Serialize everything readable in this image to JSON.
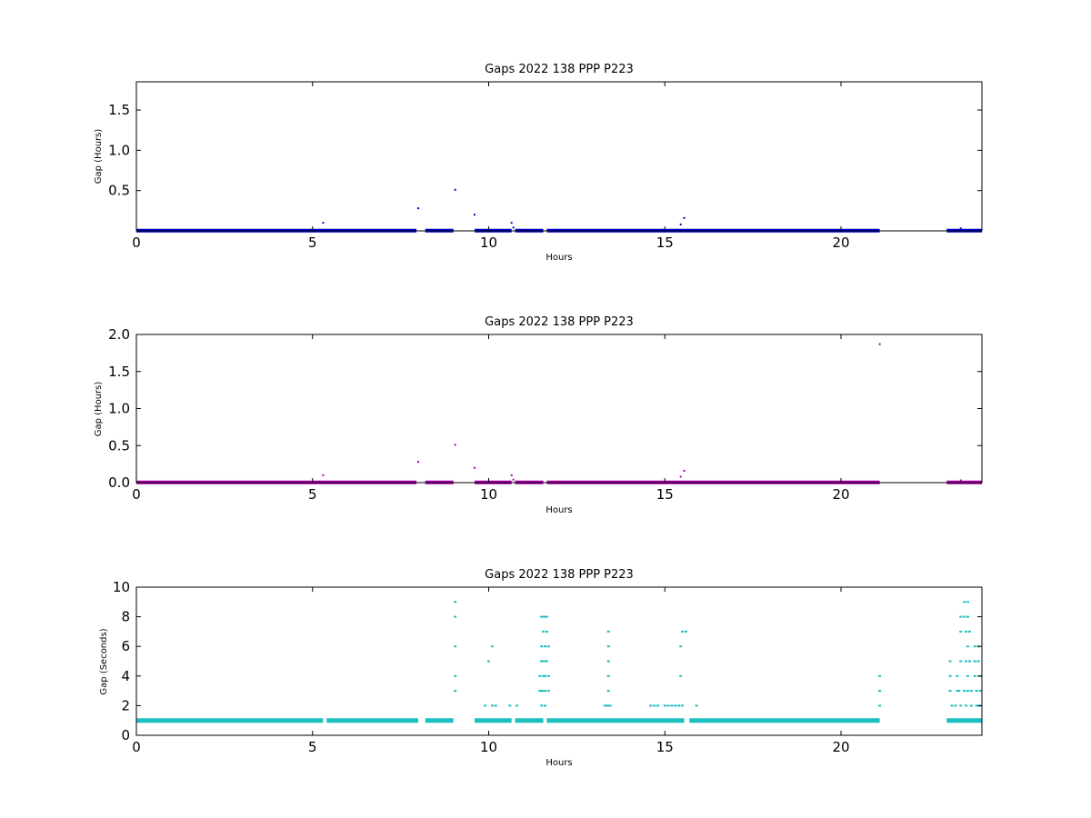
{
  "colors": {
    "panel1": "#0000cc",
    "panel2": "#aa00aa",
    "panel3": "#1bbfbf"
  },
  "chart_data": [
    {
      "type": "scatter",
      "title": "Gaps 2022 138 PPP  P223",
      "xlabel": "Hours",
      "ylabel": "Gap (Hours)",
      "xlim": [
        0,
        24
      ],
      "ylim": [
        0,
        1.85
      ],
      "xticks": [
        0,
        5,
        10,
        15,
        20
      ],
      "yticks": [
        0.5,
        1.0,
        1.5
      ],
      "ytick_labels": [
        "0.5",
        "1.0",
        "1.5"
      ],
      "grid": false,
      "baseline": {
        "value": 0.0028,
        "segments": [
          [
            0,
            7.95
          ],
          [
            8.2,
            9.0
          ],
          [
            9.6,
            10.65
          ],
          [
            10.75,
            11.55
          ],
          [
            11.65,
            21.1
          ],
          [
            23.0,
            24.0
          ]
        ]
      },
      "points": [
        [
          5.3,
          0.1
        ],
        [
          8.0,
          0.28
        ],
        [
          9.05,
          0.51
        ],
        [
          9.6,
          0.2
        ],
        [
          10.65,
          0.1
        ],
        [
          10.7,
          0.04
        ],
        [
          15.45,
          0.08
        ],
        [
          15.55,
          0.16
        ],
        [
          23.4,
          0.03
        ]
      ]
    },
    {
      "type": "scatter",
      "title": "Gaps 2022 138 PPP  P223",
      "xlabel": "Hours",
      "ylabel": "Gap (Hours)",
      "xlim": [
        0,
        24
      ],
      "ylim": [
        0,
        2.0
      ],
      "xticks": [
        0,
        5,
        10,
        15,
        20
      ],
      "yticks": [
        0.0,
        0.5,
        1.0,
        1.5,
        2.0
      ],
      "ytick_labels": [
        "0.0",
        "0.5",
        "1.0",
        "1.5",
        "2.0"
      ],
      "grid": false,
      "baseline": {
        "value": 0.0028,
        "segments": [
          [
            0,
            7.95
          ],
          [
            8.2,
            9.0
          ],
          [
            9.6,
            10.65
          ],
          [
            10.75,
            11.55
          ],
          [
            11.65,
            21.1
          ],
          [
            23.0,
            24.0
          ]
        ]
      },
      "points": [
        [
          5.3,
          0.1
        ],
        [
          8.0,
          0.28
        ],
        [
          9.05,
          0.51
        ],
        [
          9.6,
          0.2
        ],
        [
          10.65,
          0.1
        ],
        [
          10.7,
          0.04
        ],
        [
          15.45,
          0.08
        ],
        [
          15.55,
          0.16
        ],
        [
          21.1,
          1.87
        ],
        [
          23.4,
          0.03
        ]
      ]
    },
    {
      "type": "scatter",
      "title": "Gaps 2022 138 PPP  P223",
      "xlabel": "Hours",
      "ylabel": "Gap (Seconds)",
      "xlim": [
        0,
        24
      ],
      "ylim": [
        0,
        10
      ],
      "xticks": [
        0,
        5,
        10,
        15,
        20
      ],
      "yticks": [
        0,
        2,
        4,
        6,
        8,
        10
      ],
      "ytick_labels": [
        "0",
        "2",
        "4",
        "6",
        "8",
        "10"
      ],
      "grid": false,
      "baseline": {
        "value": 1,
        "segments": [
          [
            0,
            5.3
          ],
          [
            5.4,
            8.0
          ],
          [
            8.2,
            9.0
          ],
          [
            9.6,
            10.65
          ],
          [
            10.75,
            11.55
          ],
          [
            11.65,
            15.55
          ],
          [
            15.7,
            21.1
          ],
          [
            23.0,
            24.0
          ]
        ]
      },
      "points": [
        [
          9.05,
          9
        ],
        [
          9.05,
          8
        ],
        [
          9.05,
          6
        ],
        [
          9.05,
          4
        ],
        [
          9.05,
          3
        ],
        [
          9.9,
          2
        ],
        [
          10.1,
          2
        ],
        [
          10.2,
          2
        ],
        [
          10.0,
          5
        ],
        [
          10.1,
          6
        ],
        [
          10.6,
          2
        ],
        [
          10.8,
          2
        ],
        [
          11.5,
          8
        ],
        [
          11.55,
          8
        ],
        [
          11.6,
          8
        ],
        [
          11.65,
          8
        ],
        [
          11.55,
          7
        ],
        [
          11.65,
          7
        ],
        [
          11.5,
          6
        ],
        [
          11.6,
          6
        ],
        [
          11.7,
          6
        ],
        [
          11.5,
          5
        ],
        [
          11.55,
          5
        ],
        [
          11.6,
          5
        ],
        [
          11.65,
          5
        ],
        [
          11.45,
          4
        ],
        [
          11.55,
          4
        ],
        [
          11.6,
          4
        ],
        [
          11.7,
          4
        ],
        [
          11.45,
          3
        ],
        [
          11.5,
          3
        ],
        [
          11.55,
          3
        ],
        [
          11.6,
          3
        ],
        [
          11.7,
          3
        ],
        [
          11.5,
          2
        ],
        [
          11.6,
          2
        ],
        [
          13.3,
          2
        ],
        [
          13.35,
          2
        ],
        [
          13.4,
          2
        ],
        [
          13.45,
          2
        ],
        [
          13.4,
          3
        ],
        [
          13.4,
          4
        ],
        [
          13.4,
          5
        ],
        [
          13.4,
          6
        ],
        [
          13.4,
          7
        ],
        [
          14.6,
          2
        ],
        [
          14.7,
          2
        ],
        [
          14.8,
          2
        ],
        [
          15.0,
          2
        ],
        [
          15.1,
          2
        ],
        [
          15.2,
          2
        ],
        [
          15.3,
          2
        ],
        [
          15.4,
          2
        ],
        [
          15.5,
          2
        ],
        [
          15.45,
          4
        ],
        [
          15.45,
          6
        ],
        [
          15.5,
          7
        ],
        [
          15.6,
          7
        ],
        [
          15.9,
          2
        ],
        [
          21.1,
          4
        ],
        [
          21.1,
          3
        ],
        [
          21.1,
          2
        ],
        [
          23.1,
          5
        ],
        [
          23.1,
          4
        ],
        [
          23.1,
          3
        ],
        [
          23.15,
          2
        ],
        [
          23.25,
          2
        ],
        [
          23.3,
          4
        ],
        [
          23.3,
          3
        ],
        [
          23.4,
          8
        ],
        [
          23.5,
          8
        ],
        [
          23.6,
          8
        ],
        [
          23.5,
          9
        ],
        [
          23.6,
          9
        ],
        [
          23.4,
          7
        ],
        [
          23.55,
          7
        ],
        [
          23.65,
          7
        ],
        [
          23.6,
          6
        ],
        [
          23.8,
          6
        ],
        [
          23.9,
          6
        ],
        [
          23.4,
          5
        ],
        [
          23.55,
          5
        ],
        [
          23.65,
          5
        ],
        [
          23.8,
          5
        ],
        [
          23.9,
          5
        ],
        [
          23.6,
          4
        ],
        [
          23.8,
          4
        ],
        [
          23.95,
          4
        ],
        [
          23.35,
          3
        ],
        [
          23.5,
          3
        ],
        [
          23.6,
          3
        ],
        [
          23.7,
          3
        ],
        [
          23.85,
          3
        ],
        [
          23.95,
          3
        ],
        [
          23.4,
          2
        ],
        [
          23.55,
          2
        ],
        [
          23.7,
          2
        ],
        [
          23.85,
          2
        ],
        [
          23.95,
          2
        ]
      ]
    }
  ]
}
